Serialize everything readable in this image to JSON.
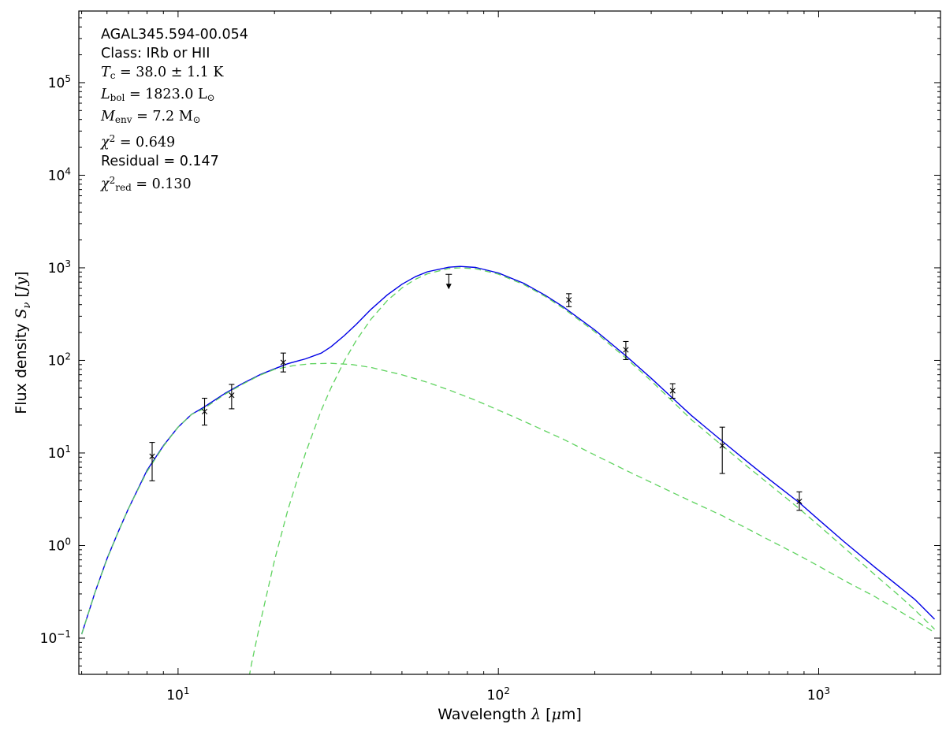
{
  "chart_data": {
    "type": "line",
    "title": "",
    "xlabel_parts": [
      {
        "t": "Wavelength ",
        "f": "sans"
      },
      {
        "t": "λ",
        "f": "mathit"
      },
      {
        "t": " [",
        "f": "sans"
      },
      {
        "t": "μ",
        "f": "mathit"
      },
      {
        "t": "m]",
        "f": "sans"
      }
    ],
    "ylabel_parts": [
      {
        "t": "Flux density ",
        "f": "sans"
      },
      {
        "t": "S",
        "f": "mathit"
      },
      {
        "t": "ν",
        "f": "mathit",
        "pos": "sub"
      },
      {
        "t": " [",
        "f": "sans"
      },
      {
        "t": "Jy",
        "f": "mathit"
      },
      {
        "t": "]",
        "f": "sans"
      }
    ],
    "xlim": [
      4.9,
      2400
    ],
    "ylim": [
      0.0406,
      594000
    ],
    "x_major_ticks": [
      10,
      100,
      1000
    ],
    "y_major_ticks": [
      0.1,
      1,
      10,
      100,
      1000,
      10000,
      100000
    ],
    "grid": false,
    "colors": {
      "model": "#0000e6",
      "components": "#5fd35f",
      "data": "#000000"
    },
    "annotation_lines": [
      {
        "segments": [
          {
            "t": "AGAL345.594-00.054",
            "f": "sans"
          }
        ]
      },
      {
        "segments": [
          {
            "t": "Class: IRb or HII",
            "f": "sans"
          }
        ]
      },
      {
        "segments": [
          {
            "t": "T",
            "f": "mathit"
          },
          {
            "t": "c",
            "f": "roman",
            "pos": "sub"
          },
          {
            "t": " = 38.0 ± 1.1 K",
            "f": "roman"
          }
        ]
      },
      {
        "segments": [
          {
            "t": "L",
            "f": "mathit"
          },
          {
            "t": "bol",
            "f": "roman",
            "pos": "sub"
          },
          {
            "t": " = 1823.0 L",
            "f": "roman"
          },
          {
            "t": "⊙",
            "f": "roman",
            "pos": "sub"
          }
        ]
      },
      {
        "segments": [
          {
            "t": "M",
            "f": "mathit"
          },
          {
            "t": "env",
            "f": "roman",
            "pos": "sub"
          },
          {
            "t": " = 7.2 M",
            "f": "roman"
          },
          {
            "t": "⊙",
            "f": "roman",
            "pos": "sub"
          }
        ]
      },
      {
        "segments": [
          {
            "t": "χ",
            "f": "mathit"
          },
          {
            "t": "2",
            "f": "roman",
            "pos": "sup"
          },
          {
            "t": " = 0.649",
            "f": "roman"
          }
        ]
      },
      {
        "segments": [
          {
            "t": "Residual = 0.147",
            "f": "sans"
          }
        ]
      },
      {
        "segments": [
          {
            "t": "χ",
            "f": "mathit"
          },
          {
            "t": "2",
            "f": "roman",
            "pos": "sup"
          },
          {
            "t": "red",
            "f": "roman",
            "pos": "sub"
          },
          {
            "t": " = 0.130",
            "f": "roman"
          }
        ]
      }
    ],
    "series": [
      {
        "name": "model-fit-total",
        "color": "#0000e6",
        "dash": null,
        "width": 1.4,
        "x": [
          5,
          5.5,
          6,
          6.5,
          7,
          8,
          9,
          10,
          11,
          12,
          14,
          16,
          18,
          20,
          22,
          25,
          28,
          30,
          33,
          36,
          40,
          45,
          50,
          55,
          60,
          70,
          76,
          85,
          100,
          120,
          140,
          160,
          200,
          250,
          300,
          350,
          400,
          500,
          600,
          700,
          870,
          1000,
          1200,
          1500,
          1800,
          2000,
          2300
        ],
        "y": [
          0.11,
          0.31,
          0.72,
          1.4,
          2.5,
          6.5,
          12,
          19,
          26,
          31,
          44,
          57,
          70,
          81,
          92,
          104,
          120,
          140,
          185,
          245,
          355,
          510,
          665,
          800,
          905,
          1015,
          1035,
          1008,
          880,
          680,
          505,
          376,
          213,
          112,
          64,
          39,
          25.5,
          13.4,
          8.0,
          5.2,
          2.9,
          1.9,
          1.1,
          0.58,
          0.35,
          0.26,
          0.16
        ]
      },
      {
        "name": "component-cold",
        "color": "#5fd35f",
        "dash": "8,5",
        "width": 1.3,
        "x": [
          16,
          17,
          18,
          20,
          22,
          25,
          28,
          30,
          33,
          36,
          40,
          45,
          50,
          55,
          60,
          70,
          76,
          85,
          100,
          120,
          140,
          160,
          200,
          250,
          300,
          350,
          400,
          500,
          600,
          700,
          870,
          1000,
          1200,
          1500,
          1800,
          2000,
          2300
        ],
        "y": [
          0.018,
          0.055,
          0.14,
          0.69,
          2.4,
          10,
          29,
          50,
          98,
          164,
          278,
          443,
          606,
          750,
          861,
          984,
          1000,
          976,
          854,
          659,
          491,
          363,
          204,
          106,
          60,
          36,
          23,
          12,
          7.1,
          4.6,
          2.5,
          1.65,
          0.95,
          0.48,
          0.28,
          0.2,
          0.125
        ]
      },
      {
        "name": "component-warm",
        "color": "#5fd35f",
        "dash": "8,5",
        "width": 1.3,
        "x": [
          5,
          5.5,
          6,
          6.5,
          7,
          8,
          9,
          10,
          11,
          12,
          14,
          16,
          18,
          20,
          23,
          26,
          30,
          35,
          40,
          50,
          60,
          70,
          85,
          100,
          120,
          160,
          200,
          250,
          300,
          400,
          500,
          700,
          870,
          1000,
          1200,
          1500,
          2000,
          2300
        ],
        "y": [
          0.11,
          0.31,
          0.71,
          1.4,
          2.5,
          6.3,
          11.8,
          19,
          26,
          30,
          43,
          56,
          69,
          80,
          88,
          92,
          93,
          90,
          84,
          70,
          58,
          48,
          37,
          29,
          22,
          14,
          9.5,
          6.5,
          4.8,
          3.0,
          2.1,
          1.15,
          0.78,
          0.6,
          0.42,
          0.28,
          0.155,
          0.115
        ]
      }
    ],
    "points": [
      {
        "wavelength": 8.3,
        "flux": 9.2,
        "err_lo": 4.2,
        "err_hi": 3.8,
        "upper_limit": false
      },
      {
        "wavelength": 12.1,
        "flux": 28,
        "err_lo": 8,
        "err_hi": 11,
        "upper_limit": false
      },
      {
        "wavelength": 14.7,
        "flux": 42,
        "err_lo": 12,
        "err_hi": 13,
        "upper_limit": false
      },
      {
        "wavelength": 21.3,
        "flux": 95,
        "err_lo": 20,
        "err_hi": 25,
        "upper_limit": false
      },
      {
        "wavelength": 70,
        "flux": 850,
        "err_lo": 0,
        "err_hi": 0,
        "upper_limit": true
      },
      {
        "wavelength": 166,
        "flux": 450,
        "err_lo": 70,
        "err_hi": 75,
        "upper_limit": false
      },
      {
        "wavelength": 250,
        "flux": 130,
        "err_lo": 28,
        "err_hi": 30,
        "upper_limit": false
      },
      {
        "wavelength": 350,
        "flux": 47,
        "err_lo": 8,
        "err_hi": 9,
        "upper_limit": false
      },
      {
        "wavelength": 500,
        "flux": 12,
        "err_lo": 6,
        "err_hi": 7,
        "upper_limit": false
      },
      {
        "wavelength": 870,
        "flux": 3.0,
        "err_lo": 0.6,
        "err_hi": 0.8,
        "upper_limit": false
      }
    ]
  }
}
